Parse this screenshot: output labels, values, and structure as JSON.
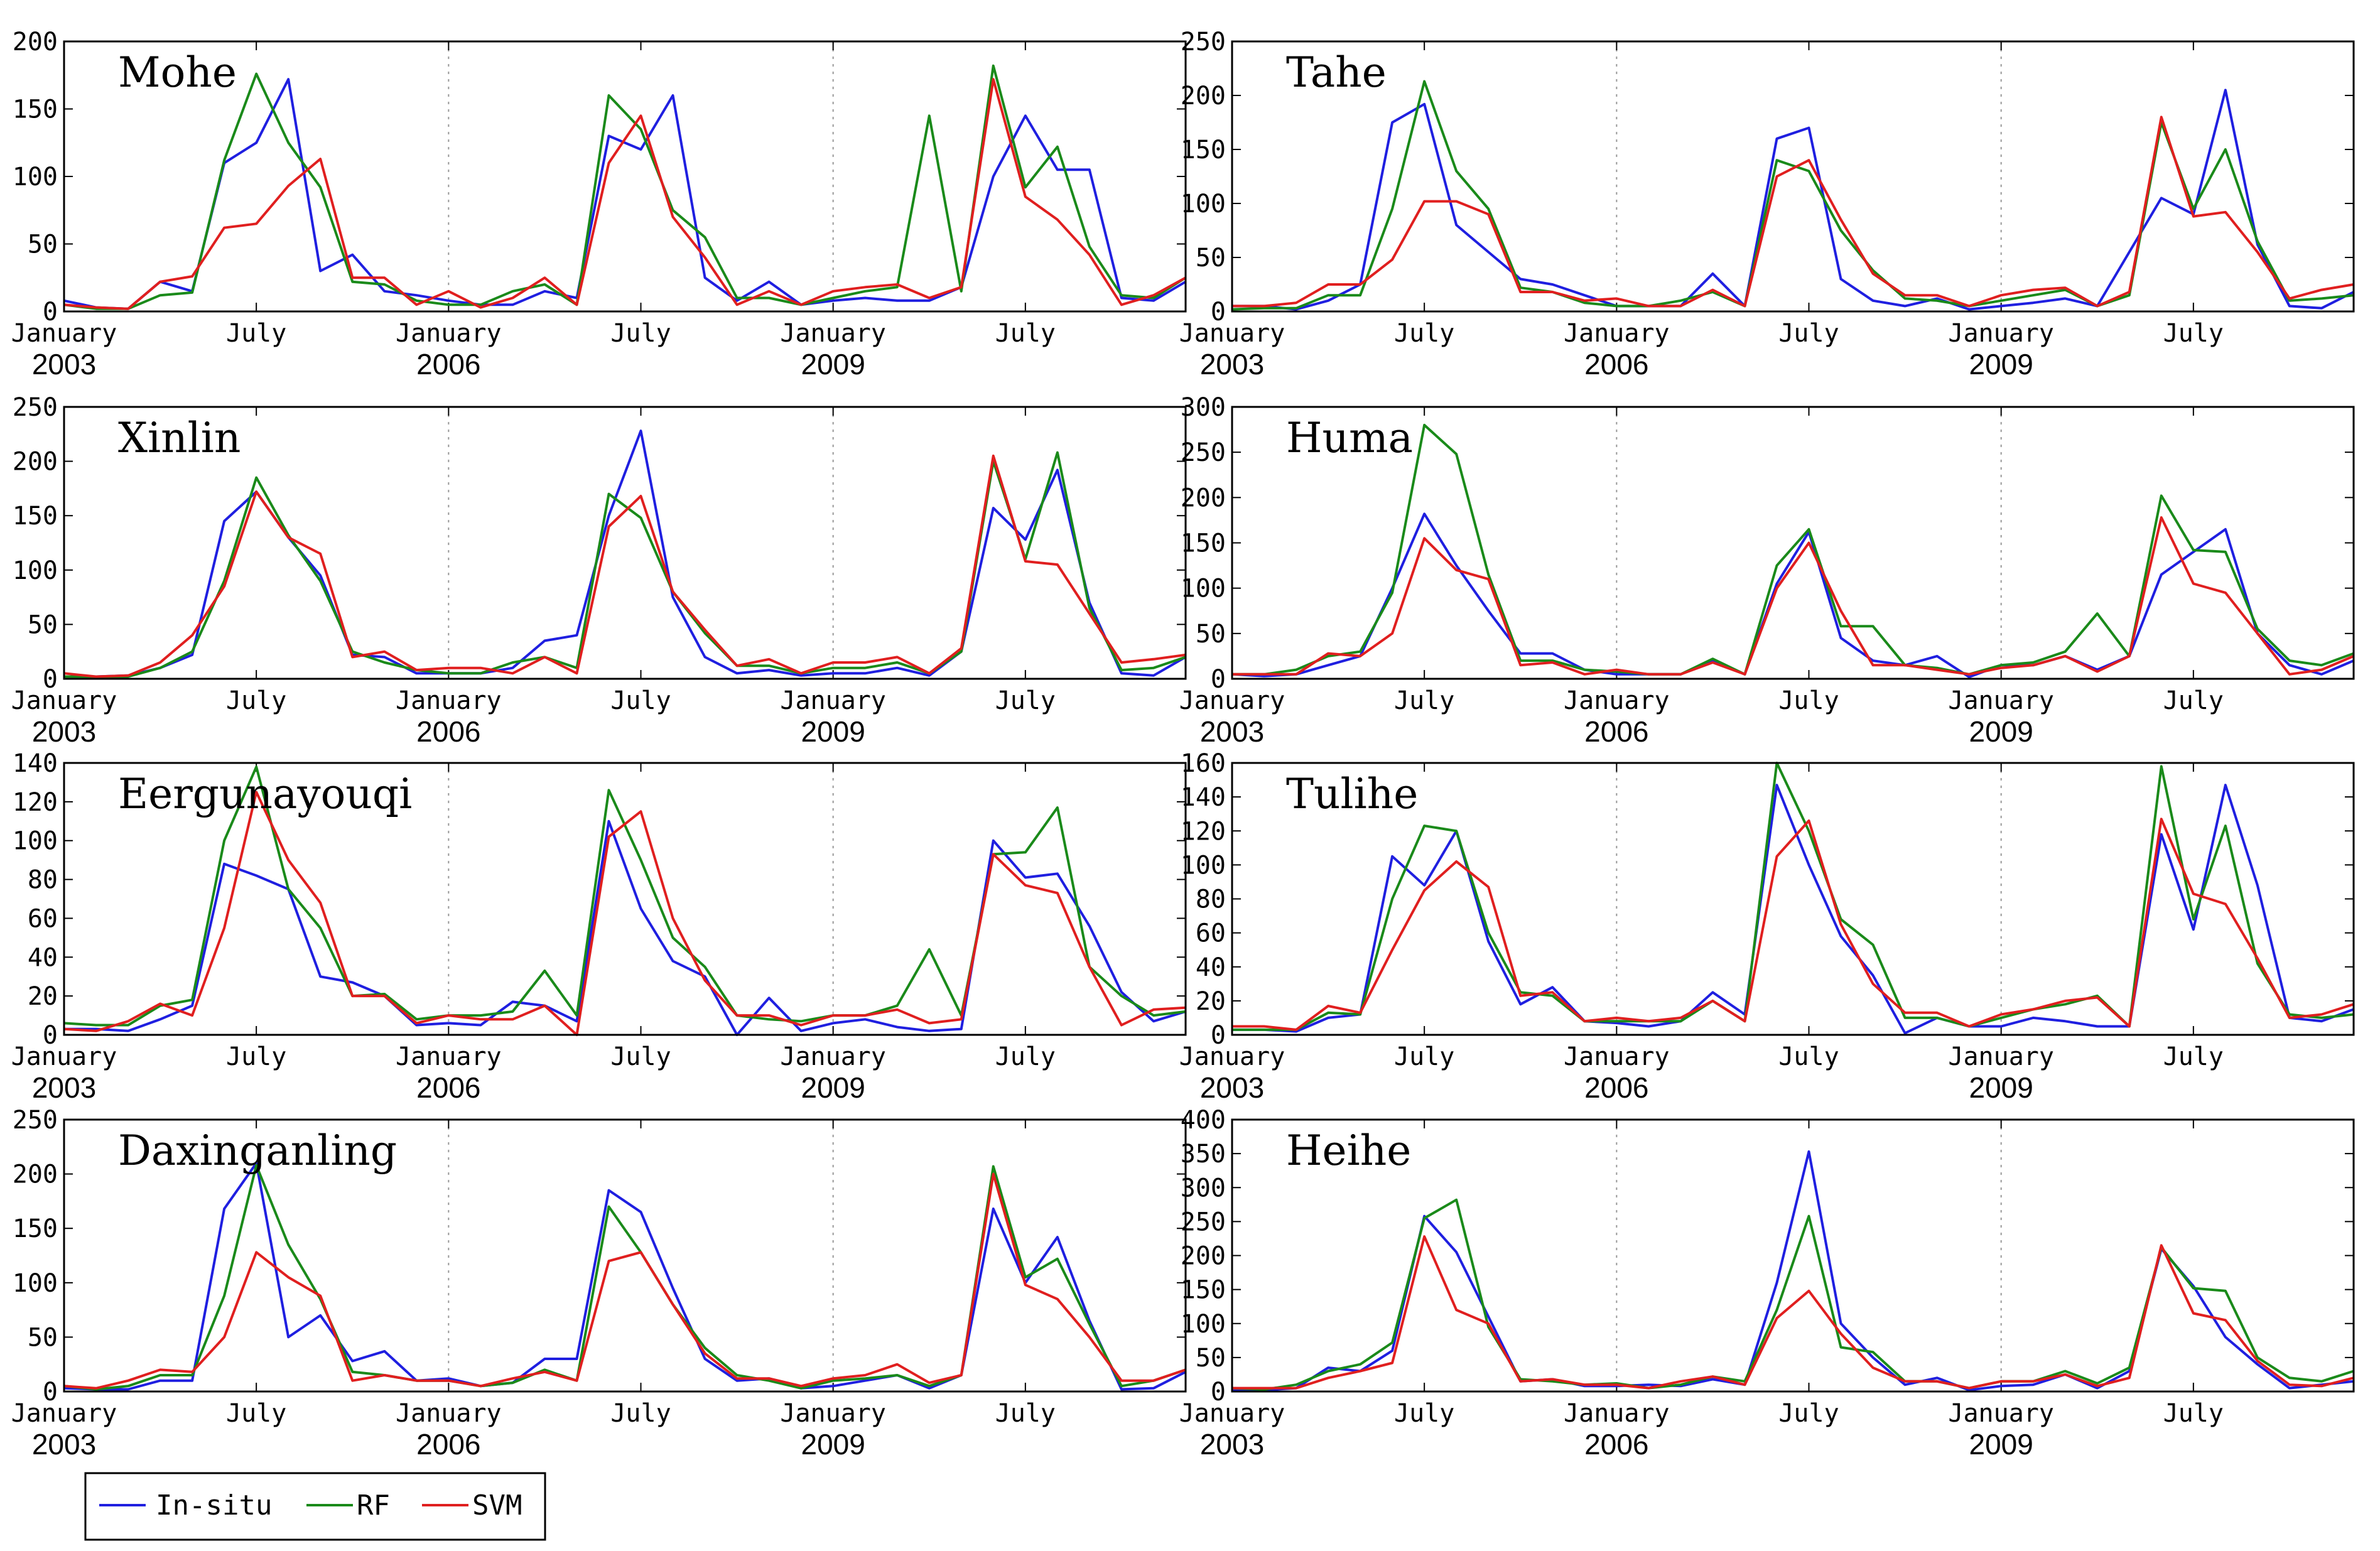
{
  "colors": {
    "In-situ": "#1f1fe0",
    "RF": "#1a8a1a",
    "SVM": "#e01f1f",
    "frame": "#000000",
    "grid": "#9a9a9a"
  },
  "legend": [
    "In-situ",
    "RF",
    "SVM"
  ],
  "xticks": [
    {
      "label": "January",
      "year": "2003",
      "index": 0
    },
    {
      "label": "July",
      "year": "",
      "index": 6
    },
    {
      "label": "January",
      "year": "2006",
      "index": 12
    },
    {
      "label": "July",
      "year": "",
      "index": 18
    },
    {
      "label": "January",
      "year": "2009",
      "index": 24
    },
    {
      "label": "July",
      "year": "",
      "index": 30
    }
  ],
  "chart_data": [
    {
      "type": "line",
      "title": "Mohe",
      "ylim": [
        0,
        200
      ],
      "yticks": [
        "0",
        "50",
        "100",
        "150",
        "200"
      ],
      "series": [
        {
          "name": "In-situ",
          "values": [
            8,
            3,
            2,
            22,
            15,
            110,
            125,
            172,
            30,
            42,
            15,
            12,
            8,
            5,
            5,
            15,
            10,
            130,
            120,
            160,
            25,
            8,
            22,
            5,
            8,
            10,
            8,
            8,
            18,
            100,
            145,
            105,
            105,
            10,
            8,
            22
          ]
        },
        {
          "name": "RF",
          "values": [
            5,
            2,
            2,
            12,
            14,
            112,
            176,
            125,
            92,
            22,
            20,
            8,
            5,
            5,
            15,
            20,
            5,
            160,
            135,
            75,
            55,
            10,
            10,
            5,
            10,
            15,
            18,
            145,
            15,
            182,
            92,
            122,
            48,
            12,
            10,
            25
          ]
        },
        {
          "name": "SVM",
          "values": [
            5,
            3,
            2,
            22,
            26,
            62,
            65,
            93,
            113,
            25,
            25,
            5,
            15,
            3,
            10,
            25,
            5,
            110,
            145,
            70,
            40,
            5,
            15,
            5,
            15,
            18,
            20,
            10,
            18,
            172,
            85,
            68,
            42,
            5,
            12,
            25
          ]
        }
      ]
    },
    {
      "type": "line",
      "title": "Tahe",
      "ylim": [
        0,
        250
      ],
      "yticks": [
        "0",
        "50",
        "100",
        "150",
        "200",
        "250"
      ],
      "series": [
        {
          "name": "In-situ",
          "values": [
            5,
            5,
            2,
            10,
            25,
            175,
            192,
            80,
            55,
            30,
            25,
            15,
            5,
            5,
            5,
            35,
            5,
            160,
            170,
            30,
            10,
            5,
            12,
            2,
            5,
            8,
            12,
            5,
            55,
            105,
            90,
            205,
            62,
            5,
            3,
            18
          ]
        },
        {
          "name": "RF",
          "values": [
            2,
            3,
            3,
            15,
            15,
            95,
            213,
            130,
            95,
            22,
            18,
            8,
            5,
            5,
            10,
            18,
            5,
            140,
            130,
            75,
            38,
            12,
            10,
            5,
            10,
            15,
            20,
            5,
            15,
            175,
            95,
            150,
            65,
            10,
            12,
            15
          ]
        },
        {
          "name": "SVM",
          "values": [
            5,
            5,
            8,
            25,
            25,
            48,
            102,
            102,
            90,
            18,
            18,
            10,
            12,
            5,
            5,
            20,
            5,
            125,
            140,
            85,
            35,
            15,
            15,
            5,
            15,
            20,
            22,
            5,
            18,
            180,
            88,
            92,
            55,
            12,
            20,
            25
          ]
        }
      ]
    },
    {
      "type": "line",
      "title": "Xinlin",
      "ylim": [
        0,
        250
      ],
      "yticks": [
        "0",
        "50",
        "100",
        "150",
        "200",
        "250"
      ],
      "series": [
        {
          "name": "In-situ",
          "values": [
            2,
            2,
            3,
            10,
            22,
            145,
            172,
            130,
            95,
            22,
            20,
            5,
            5,
            5,
            10,
            35,
            40,
            150,
            228,
            75,
            20,
            5,
            8,
            3,
            5,
            5,
            10,
            3,
            25,
            157,
            128,
            192,
            70,
            5,
            3,
            20
          ]
        },
        {
          "name": "RF",
          "values": [
            2,
            2,
            2,
            10,
            25,
            90,
            185,
            132,
            90,
            25,
            15,
            8,
            5,
            5,
            15,
            20,
            10,
            170,
            148,
            80,
            42,
            12,
            12,
            5,
            10,
            10,
            15,
            5,
            25,
            200,
            110,
            208,
            65,
            8,
            10,
            20
          ]
        },
        {
          "name": "SVM",
          "values": [
            5,
            2,
            3,
            15,
            40,
            85,
            172,
            130,
            115,
            20,
            25,
            8,
            10,
            10,
            5,
            20,
            5,
            140,
            168,
            80,
            45,
            12,
            18,
            5,
            15,
            15,
            20,
            5,
            28,
            205,
            108,
            105,
            60,
            15,
            18,
            22
          ]
        }
      ]
    },
    {
      "type": "line",
      "title": "Huma",
      "ylim": [
        0,
        300
      ],
      "yticks": [
        "0",
        "50",
        "100",
        "150",
        "200",
        "250",
        "300"
      ],
      "series": [
        {
          "name": "In-situ",
          "values": [
            5,
            3,
            5,
            15,
            25,
            100,
            182,
            125,
            75,
            28,
            28,
            10,
            5,
            5,
            5,
            20,
            5,
            105,
            162,
            45,
            20,
            15,
            25,
            2,
            15,
            15,
            25,
            10,
            25,
            115,
            140,
            165,
            50,
            15,
            5,
            20
          ]
        },
        {
          "name": "RF",
          "values": [
            5,
            5,
            10,
            25,
            30,
            95,
            280,
            248,
            115,
            20,
            20,
            10,
            8,
            5,
            5,
            22,
            5,
            125,
            165,
            58,
            58,
            15,
            12,
            5,
            15,
            18,
            30,
            72,
            25,
            202,
            142,
            140,
            55,
            20,
            15,
            28
          ]
        },
        {
          "name": "SVM",
          "values": [
            5,
            5,
            5,
            28,
            25,
            50,
            155,
            120,
            110,
            15,
            18,
            5,
            10,
            5,
            5,
            18,
            5,
            100,
            150,
            75,
            15,
            15,
            10,
            5,
            12,
            15,
            25,
            8,
            25,
            178,
            105,
            95,
            50,
            5,
            10,
            25
          ]
        }
      ]
    },
    {
      "type": "line",
      "title": "Eergunayouqi",
      "ylim": [
        0,
        140
      ],
      "yticks": [
        "0",
        "20",
        "40",
        "60",
        "80",
        "100",
        "120",
        "140"
      ],
      "series": [
        {
          "name": "In-situ",
          "values": [
            3,
            3,
            2,
            8,
            15,
            88,
            82,
            75,
            30,
            27,
            20,
            5,
            6,
            5,
            17,
            15,
            7,
            110,
            65,
            38,
            30,
            0,
            19,
            2,
            6,
            8,
            4,
            2,
            3,
            100,
            81,
            83,
            56,
            22,
            7,
            12
          ]
        },
        {
          "name": "RF",
          "values": [
            6,
            5,
            5,
            15,
            18,
            100,
            138,
            75,
            55,
            20,
            21,
            8,
            10,
            10,
            12,
            33,
            10,
            126,
            90,
            50,
            35,
            10,
            8,
            7,
            10,
            10,
            15,
            44,
            10,
            93,
            94,
            117,
            35,
            20,
            10,
            12
          ]
        },
        {
          "name": "SVM",
          "values": [
            3,
            2,
            7,
            16,
            10,
            55,
            125,
            90,
            68,
            20,
            20,
            6,
            10,
            8,
            8,
            15,
            0,
            102,
            115,
            60,
            28,
            10,
            10,
            5,
            10,
            10,
            13,
            6,
            8,
            93,
            77,
            73,
            35,
            5,
            13,
            14
          ]
        }
      ]
    },
    {
      "type": "line",
      "title": "Tulihe",
      "ylim": [
        0,
        160
      ],
      "yticks": [
        "0",
        "20",
        "40",
        "60",
        "80",
        "100",
        "120",
        "140",
        "160"
      ],
      "series": [
        {
          "name": "In-situ",
          "values": [
            3,
            3,
            2,
            10,
            12,
            105,
            88,
            120,
            55,
            18,
            28,
            8,
            7,
            5,
            8,
            25,
            12,
            147,
            100,
            58,
            35,
            1,
            10,
            5,
            5,
            10,
            8,
            5,
            5,
            118,
            62,
            147,
            88,
            10,
            8,
            15
          ]
        },
        {
          "name": "RF",
          "values": [
            3,
            3,
            3,
            13,
            12,
            80,
            123,
            120,
            60,
            25,
            23,
            8,
            8,
            8,
            8,
            20,
            8,
            160,
            120,
            68,
            53,
            10,
            10,
            5,
            10,
            15,
            18,
            23,
            5,
            158,
            68,
            123,
            42,
            12,
            10,
            12
          ]
        },
        {
          "name": "SVM",
          "values": [
            5,
            5,
            3,
            17,
            13,
            50,
            85,
            102,
            87,
            23,
            25,
            8,
            10,
            8,
            10,
            20,
            8,
            105,
            126,
            65,
            30,
            13,
            13,
            5,
            12,
            15,
            20,
            22,
            5,
            127,
            83,
            77,
            45,
            10,
            12,
            18
          ]
        }
      ]
    },
    {
      "type": "line",
      "title": "Daxinganling",
      "ylim": [
        0,
        250
      ],
      "yticks": [
        "0",
        "50",
        "100",
        "150",
        "200",
        "250"
      ],
      "series": [
        {
          "name": "In-situ",
          "values": [
            3,
            2,
            2,
            10,
            10,
            168,
            210,
            50,
            70,
            28,
            37,
            10,
            12,
            5,
            8,
            30,
            30,
            185,
            165,
            95,
            30,
            10,
            12,
            3,
            5,
            10,
            15,
            3,
            15,
            168,
            100,
            142,
            65,
            2,
            3,
            18
          ]
        },
        {
          "name": "RF",
          "values": [
            5,
            2,
            5,
            15,
            15,
            88,
            208,
            135,
            85,
            18,
            15,
            10,
            10,
            5,
            8,
            20,
            10,
            170,
            128,
            80,
            40,
            15,
            10,
            3,
            10,
            12,
            15,
            5,
            15,
            207,
            105,
            122,
            62,
            5,
            10,
            20
          ]
        },
        {
          "name": "SVM",
          "values": [
            5,
            3,
            10,
            20,
            18,
            50,
            128,
            105,
            88,
            10,
            15,
            10,
            10,
            5,
            12,
            18,
            10,
            120,
            128,
            80,
            35,
            12,
            12,
            5,
            12,
            15,
            25,
            8,
            15,
            200,
            98,
            85,
            50,
            10,
            10,
            20
          ]
        }
      ]
    },
    {
      "type": "line",
      "title": "Heihe",
      "ylim": [
        0,
        400
      ],
      "yticks": [
        "0",
        "50",
        "100",
        "150",
        "200",
        "250",
        "300",
        "350",
        "400"
      ],
      "series": [
        {
          "name": "In-situ",
          "values": [
            2,
            2,
            5,
            35,
            30,
            60,
            258,
            205,
            110,
            15,
            18,
            8,
            8,
            10,
            8,
            18,
            10,
            160,
            353,
            100,
            50,
            10,
            20,
            2,
            8,
            10,
            25,
            5,
            30,
            210,
            155,
            80,
            40,
            5,
            10,
            15
          ]
        },
        {
          "name": "RF",
          "values": [
            5,
            3,
            10,
            30,
            40,
            72,
            255,
            282,
            95,
            18,
            15,
            10,
            12,
            5,
            10,
            22,
            15,
            120,
            258,
            65,
            58,
            15,
            15,
            5,
            15,
            15,
            30,
            12,
            35,
            212,
            152,
            148,
            50,
            20,
            15,
            30
          ]
        },
        {
          "name": "SVM",
          "values": [
            5,
            5,
            5,
            20,
            30,
            42,
            228,
            120,
            100,
            15,
            18,
            10,
            10,
            5,
            15,
            22,
            10,
            108,
            148,
            85,
            35,
            15,
            15,
            5,
            15,
            15,
            25,
            8,
            20,
            215,
            115,
            105,
            45,
            10,
            8,
            20
          ]
        }
      ]
    }
  ]
}
